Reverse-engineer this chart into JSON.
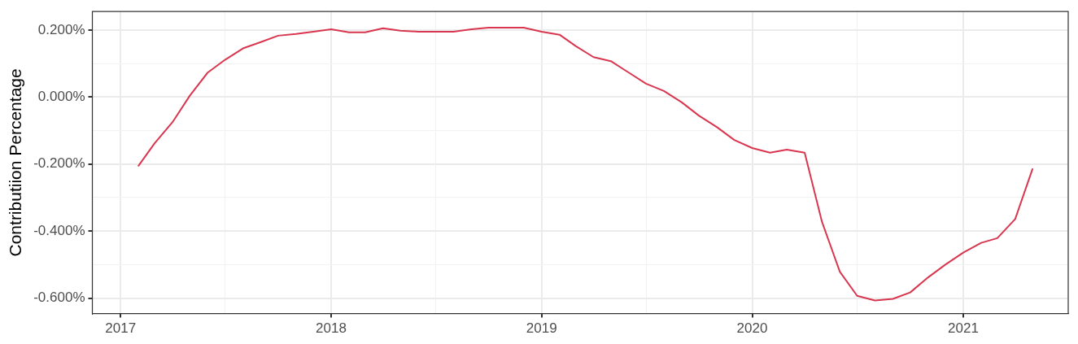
{
  "chart_data": {
    "type": "line",
    "ylabel": "Contributiion Percentage",
    "x": [
      "2017-02",
      "2017-03",
      "2017-04",
      "2017-05",
      "2017-06",
      "2017-07",
      "2017-08",
      "2017-09",
      "2017-10",
      "2017-11",
      "2017-12",
      "2018-01",
      "2018-02",
      "2018-03",
      "2018-04",
      "2018-05",
      "2018-06",
      "2018-07",
      "2018-08",
      "2018-09",
      "2018-10",
      "2018-11",
      "2018-12",
      "2019-01",
      "2019-02",
      "2019-03",
      "2019-04",
      "2019-05",
      "2019-06",
      "2019-07",
      "2019-08",
      "2019-09",
      "2019-10",
      "2019-11",
      "2019-12",
      "2020-01",
      "2020-02",
      "2020-03",
      "2020-04",
      "2020-05",
      "2020-06",
      "2020-07",
      "2020-08",
      "2020-09",
      "2020-10",
      "2020-11",
      "2020-12",
      "2021-01",
      "2021-02",
      "2021-03",
      "2021-04",
      "2021-05"
    ],
    "series": [
      {
        "color": "#d9364f",
        "values": [
          -0.205,
          -0.138,
          -0.075,
          0.004,
          0.073,
          0.111,
          0.145,
          0.164,
          0.183,
          0.188,
          0.195,
          0.202,
          0.193,
          0.193,
          0.205,
          0.198,
          0.195,
          0.195,
          0.195,
          0.202,
          0.207,
          0.207,
          0.207,
          0.195,
          0.186,
          0.152,
          0.119,
          0.107,
          0.073,
          0.04,
          0.018,
          -0.016,
          -0.056,
          -0.09,
          -0.128,
          -0.152,
          -0.166,
          -0.157,
          -0.166,
          -0.372,
          -0.521,
          -0.593,
          -0.607,
          -0.602,
          -0.583,
          -0.538,
          -0.5,
          -0.464,
          -0.435,
          -0.421,
          -0.364,
          -0.215
        ]
      }
    ],
    "xlim": [
      "2016-11-13",
      "2021-07-02"
    ],
    "xticks": [
      "2017",
      {
        "value": "2017-07",
        "label": null
      },
      "2018",
      {
        "value": "2018-07",
        "label": null
      },
      "2019",
      {
        "value": "2019-07",
        "label": null
      },
      "2020",
      {
        "value": "2020-07",
        "label": null
      },
      "2021",
      {
        "value": "2021-07",
        "label": null
      }
    ],
    "ylim": [
      -0.646,
      0.255
    ],
    "yticks": [
      {
        "value": -0.6,
        "label": "-0.600%"
      },
      {
        "value": -0.5,
        "label": null
      },
      {
        "value": -0.4,
        "label": "-0.400%"
      },
      {
        "value": -0.3,
        "label": null
      },
      {
        "value": -0.2,
        "label": "-0.200%"
      },
      {
        "value": -0.1,
        "label": null
      },
      {
        "value": 0,
        "label": "0.000%"
      },
      {
        "value": 0.1,
        "label": null
      },
      {
        "value": 0.2,
        "label": "0.200%"
      }
    ],
    "grid": true,
    "legend": false,
    "marker": "none",
    "line_style": "solid"
  }
}
